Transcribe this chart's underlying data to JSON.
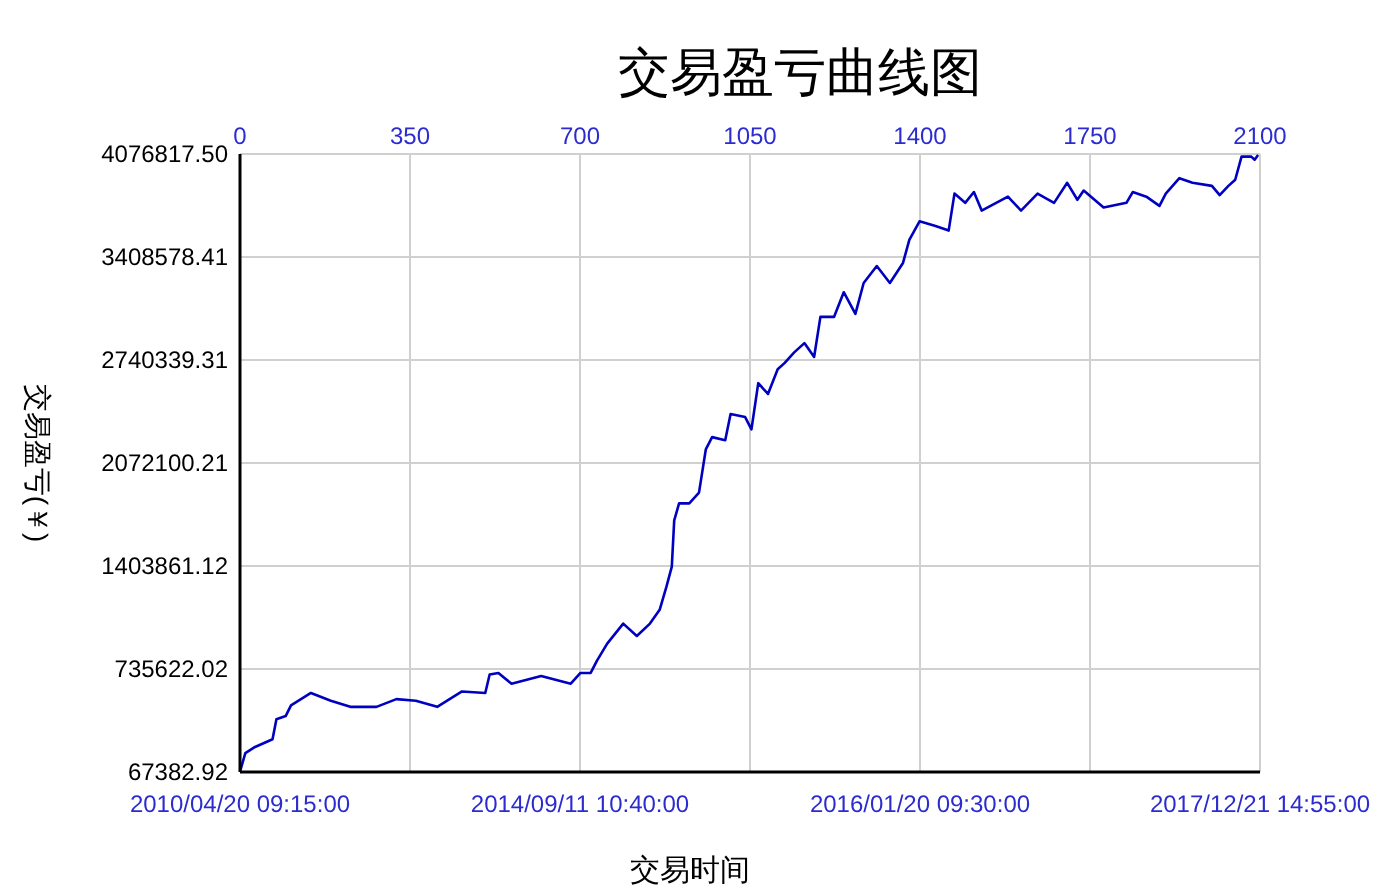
{
  "chart_data": {
    "type": "line",
    "title": "交易盈亏曲线图",
    "xlabel": "交易时间",
    "ylabel": "交易盈亏(￥)",
    "x": [
      0,
      11,
      31,
      67,
      75,
      94,
      105,
      146,
      187,
      227,
      281,
      322,
      362,
      406,
      457,
      505,
      514,
      532,
      559,
      620,
      681,
      701,
      722,
      735,
      756,
      789,
      817,
      844,
      864,
      878,
      889,
      894,
      904,
      925,
      945,
      959,
      972,
      999,
      1010,
      1040,
      1053,
      1067,
      1087,
      1107,
      1121,
      1141,
      1162,
      1182,
      1195,
      1223,
      1243,
      1267,
      1284,
      1311,
      1338,
      1365,
      1378,
      1399,
      1432,
      1459,
      1471,
      1493,
      1511,
      1527,
      1581,
      1608,
      1642,
      1676,
      1703,
      1724,
      1737,
      1778,
      1825,
      1838,
      1866,
      1893,
      1906,
      1934,
      1961,
      2001,
      2017,
      2035,
      2049,
      2062,
      2082,
      2089,
      2096
    ],
    "series": [
      {
        "color": "#0000c0",
        "values": [
          70000,
          190000,
          230000,
          280000,
          410000,
          430000,
          500000,
          580000,
          530000,
          490000,
          490000,
          540000,
          530000,
          490000,
          590000,
          580000,
          700000,
          710000,
          640000,
          690000,
          640000,
          710000,
          710000,
          790000,
          900000,
          1030000,
          950000,
          1030000,
          1120000,
          1270000,
          1400000,
          1700000,
          1810000,
          1810000,
          1880000,
          2160000,
          2240000,
          2220000,
          2390000,
          2370000,
          2290000,
          2590000,
          2520000,
          2680000,
          2720000,
          2790000,
          2850000,
          2760000,
          3020000,
          3020000,
          3180000,
          3040000,
          3240000,
          3350000,
          3240000,
          3370000,
          3520000,
          3640000,
          3610000,
          3580000,
          3820000,
          3760000,
          3830000,
          3710000,
          3800000,
          3710000,
          3820000,
          3760000,
          3890000,
          3780000,
          3840000,
          3730000,
          3760000,
          3830000,
          3800000,
          3740000,
          3820000,
          3920000,
          3890000,
          3870000,
          3810000,
          3870000,
          3910000,
          4060000,
          4060000,
          4040000,
          4070000
        ]
      }
    ],
    "xlim": [
      0,
      2100
    ],
    "xticks": [
      0,
      350,
      700,
      1050,
      1400,
      1750,
      2100
    ],
    "annotations": [
      "2010/04/20 09:15:00",
      "2014/09/11 10:40:00",
      "2016/01/20 09:30:00",
      "2017/12/21 14:55:00"
    ],
    "ylim": [
      67382.92,
      4076817.5
    ],
    "yticks": [
      67382.92,
      735622.02,
      1403861.12,
      2072100.21,
      2740339.31,
      3408578.41,
      {
        "value": 4076817.5,
        "label": "4076817.50"
      }
    ],
    "grid": true
  }
}
